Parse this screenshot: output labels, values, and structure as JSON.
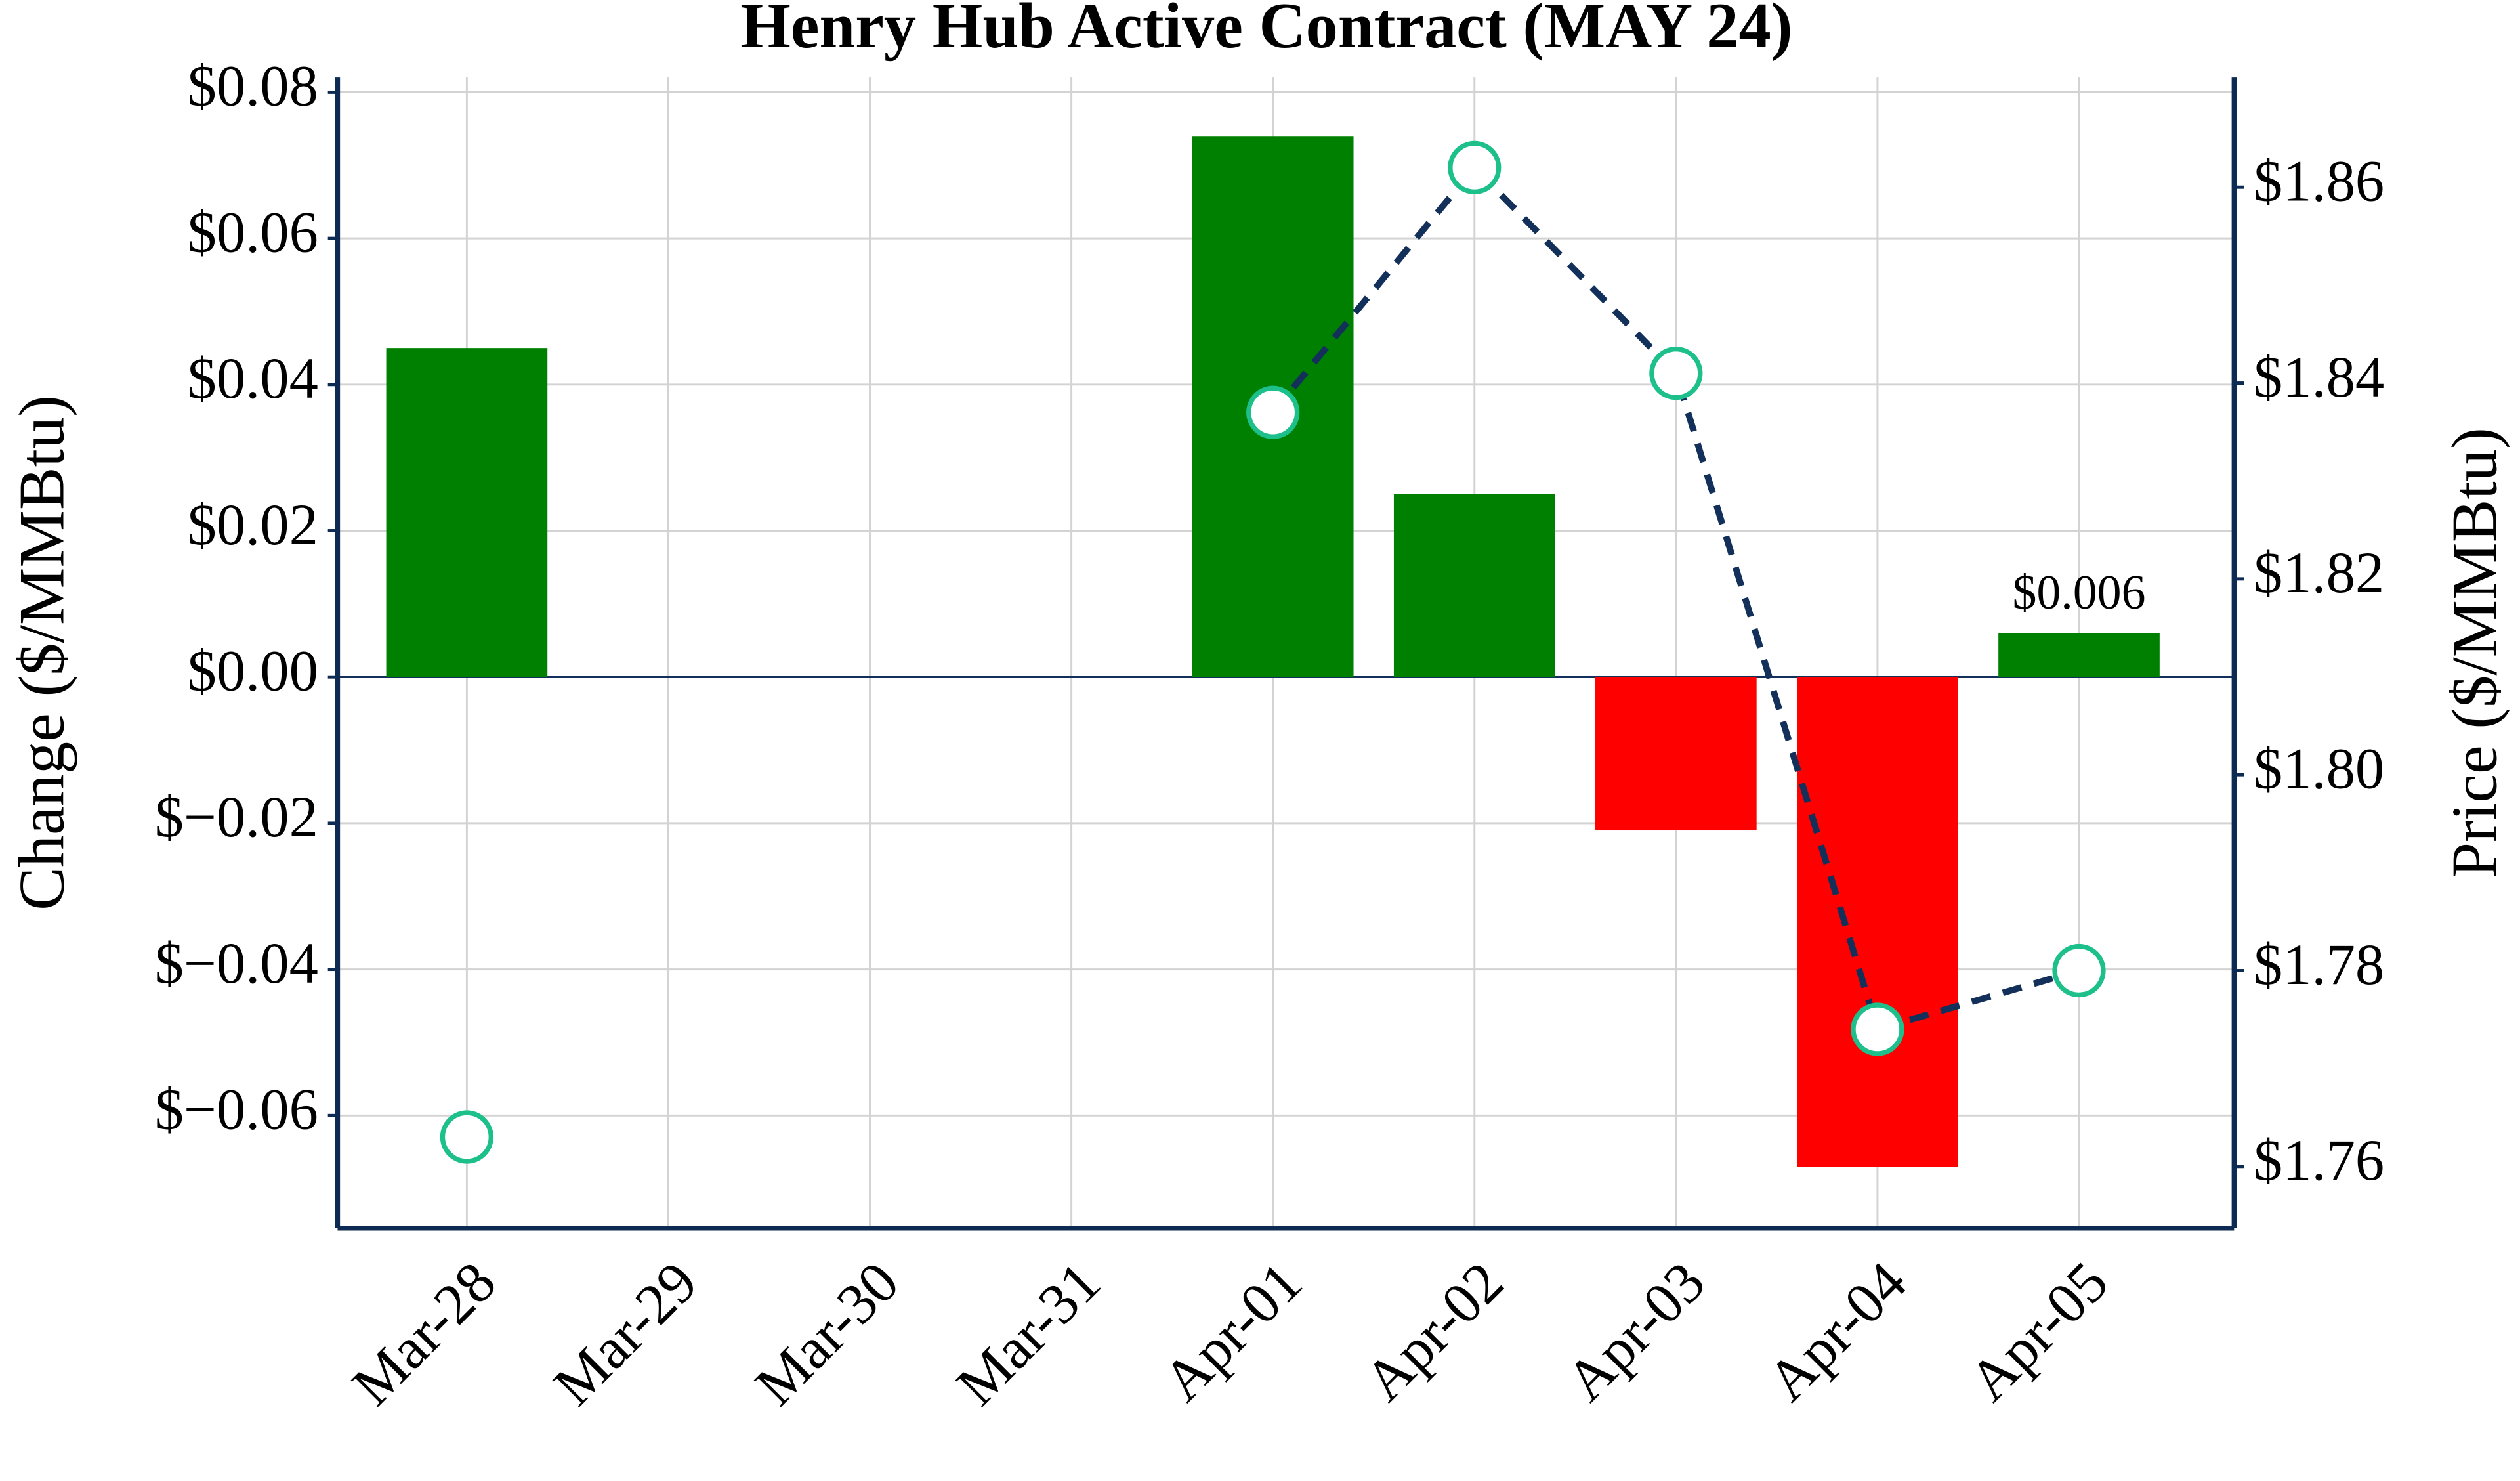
{
  "chart_data": {
    "type": "bar_line",
    "title": "Henry Hub Active Contract (MAY 24)",
    "y_label": "Change ($/MMBtu)",
    "y2_label": "Price ($/MMBtu)",
    "categories": [
      "Mar-28",
      "Mar-29",
      "Mar-30",
      "Mar-31",
      "Apr-01",
      "Apr-02",
      "Apr-03",
      "Apr-04",
      "Apr-05"
    ],
    "series": [
      {
        "type": "bar",
        "values": [
          0.045,
          null,
          null,
          null,
          0.074,
          0.025,
          -0.021,
          -0.067,
          0.006
        ],
        "value_labels": [
          null,
          null,
          null,
          null,
          null,
          null,
          null,
          null,
          "$0.006"
        ],
        "positive_color": "#008000",
        "negative_color": "#ff0000"
      },
      {
        "type": "line",
        "axis": "y2",
        "values": [
          1.763,
          null,
          null,
          null,
          1.837,
          1.862,
          1.841,
          1.774,
          1.78
        ],
        "color": "#13305a",
        "marker_fill": "#ffffff",
        "marker_edge": "#1dbf8a",
        "linestyle": "dashed"
      }
    ],
    "ylim": [
      -0.0754,
      0.082
    ],
    "yticks": [
      {
        "value": -0.06,
        "label": "$−0.06"
      },
      {
        "value": -0.04,
        "label": "$−0.04"
      },
      {
        "value": -0.02,
        "label": "$−0.02"
      },
      {
        "value": 0,
        "label": "$0.00"
      },
      {
        "value": 0.02,
        "label": "$0.02"
      },
      {
        "value": 0.04,
        "label": "$0.04"
      },
      {
        "value": 0.06,
        "label": "$0.06"
      },
      {
        "value": 0.08,
        "label": "$0.08"
      }
    ],
    "y2lim": [
      1.7537,
      1.8712
    ],
    "y2ticks": [
      {
        "value": 1.76,
        "label": "$1.76"
      },
      {
        "value": 1.78,
        "label": "$1.78"
      },
      {
        "value": 1.8,
        "label": "$1.80"
      },
      {
        "value": 1.82,
        "label": "$1.82"
      },
      {
        "value": 1.84,
        "label": "$1.84"
      },
      {
        "value": 1.86,
        "label": "$1.86"
      }
    ],
    "grid": true
  }
}
